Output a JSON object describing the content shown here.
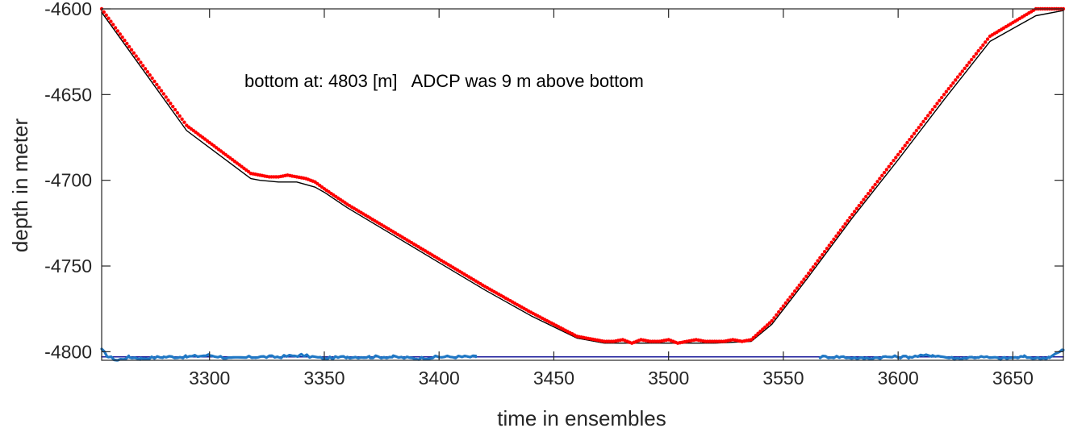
{
  "chart_data": {
    "type": "line",
    "xlabel": "time in ensembles",
    "ylabel": "depth in meter",
    "xlim": [
      3253,
      3672
    ],
    "ylim": [
      -4805,
      -4600
    ],
    "xticks": [
      3300,
      3350,
      3400,
      3450,
      3500,
      3550,
      3600,
      3650
    ],
    "yticks": [
      -4600,
      -4650,
      -4700,
      -4750,
      -4800
    ],
    "xtick_labels": [
      "3300",
      "3350",
      "3400",
      "3450",
      "3500",
      "3550",
      "3600",
      "3650"
    ],
    "ytick_labels": [
      "-4600",
      "-4650",
      "-4700",
      "-4750",
      "-4800"
    ],
    "annotation": "bottom at: 4803 [m]   ADCP was 9 m above bottom",
    "grid": false,
    "colors": {
      "instrument_depth": "#ff0000",
      "instrument_depth_outline": "#000000",
      "bottom_detect": "#1f77c4",
      "bottom_line": "#1a1a99"
    },
    "series": [
      {
        "key": "instrument_depth",
        "style": "red-dots",
        "x": [
          3253,
          3290,
          3318,
          3322,
          3326,
          3330,
          3334,
          3338,
          3342,
          3346,
          3350,
          3360,
          3380,
          3400,
          3420,
          3440,
          3460,
          3472,
          3476,
          3480,
          3484,
          3488,
          3492,
          3496,
          3500,
          3504,
          3508,
          3512,
          3516,
          3520,
          3524,
          3528,
          3532,
          3536,
          3545,
          3560,
          3580,
          3600,
          3620,
          3640,
          3660,
          3672
        ],
        "y": [
          -4600,
          -4668,
          -4696,
          -4697,
          -4698,
          -4698,
          -4697,
          -4698,
          -4699,
          -4701,
          -4705,
          -4714,
          -4730,
          -4746,
          -4762,
          -4777,
          -4791,
          -4794,
          -4794,
          -4793,
          -4795,
          -4793,
          -4794,
          -4794,
          -4793,
          -4795,
          -4794,
          -4793,
          -4794,
          -4794,
          -4794,
          -4793,
          -4794,
          -4793,
          -4782,
          -4756,
          -4720,
          -4685,
          -4650,
          -4616,
          -4600,
          -4600
        ]
      },
      {
        "key": "instrument_depth_outline",
        "style": "thin-black-line",
        "x": [
          3253,
          3290,
          3318,
          3322,
          3330,
          3338,
          3346,
          3350,
          3360,
          3380,
          3400,
          3420,
          3440,
          3460,
          3472,
          3480,
          3500,
          3520,
          3536,
          3545,
          3560,
          3580,
          3600,
          3620,
          3640,
          3660,
          3672
        ],
        "y": [
          -4602,
          -4671,
          -4699,
          -4700,
          -4701,
          -4701,
          -4704,
          -4707,
          -4716,
          -4732,
          -4748,
          -4764,
          -4779,
          -4792,
          -4795,
          -4795,
          -4795,
          -4795,
          -4794,
          -4784,
          -4758,
          -4722,
          -4688,
          -4653,
          -4619,
          -4604,
          -4601
        ]
      },
      {
        "key": "bottom_detect_start",
        "style": "blue-noisy-line",
        "x": [
          3253,
          3256,
          3260,
          3265,
          3270,
          3280,
          3290,
          3300,
          3310,
          3320,
          3330,
          3340,
          3350,
          3360,
          3370,
          3380,
          3390,
          3400,
          3410,
          3416
        ],
        "y": [
          -4799,
          -4803,
          -4805,
          -4803,
          -4804,
          -4803,
          -4803,
          -4802,
          -4804,
          -4803,
          -4803,
          -4802,
          -4804,
          -4803,
          -4803,
          -4803,
          -4804,
          -4803,
          -4803,
          -4803
        ]
      },
      {
        "key": "bottom_detect_end",
        "style": "blue-noisy-line",
        "x": [
          3566,
          3575,
          3585,
          3595,
          3605,
          3615,
          3625,
          3635,
          3645,
          3655,
          3662,
          3666,
          3669,
          3672
        ],
        "y": [
          -4803,
          -4803,
          -4804,
          -4803,
          -4803,
          -4802,
          -4804,
          -4803,
          -4804,
          -4803,
          -4804,
          -4803,
          -4801,
          -4799
        ]
      },
      {
        "key": "bottom_line",
        "style": "dark-blue-line",
        "x": [
          3253,
          3672
        ],
        "y": [
          -4803,
          -4803
        ]
      }
    ]
  }
}
